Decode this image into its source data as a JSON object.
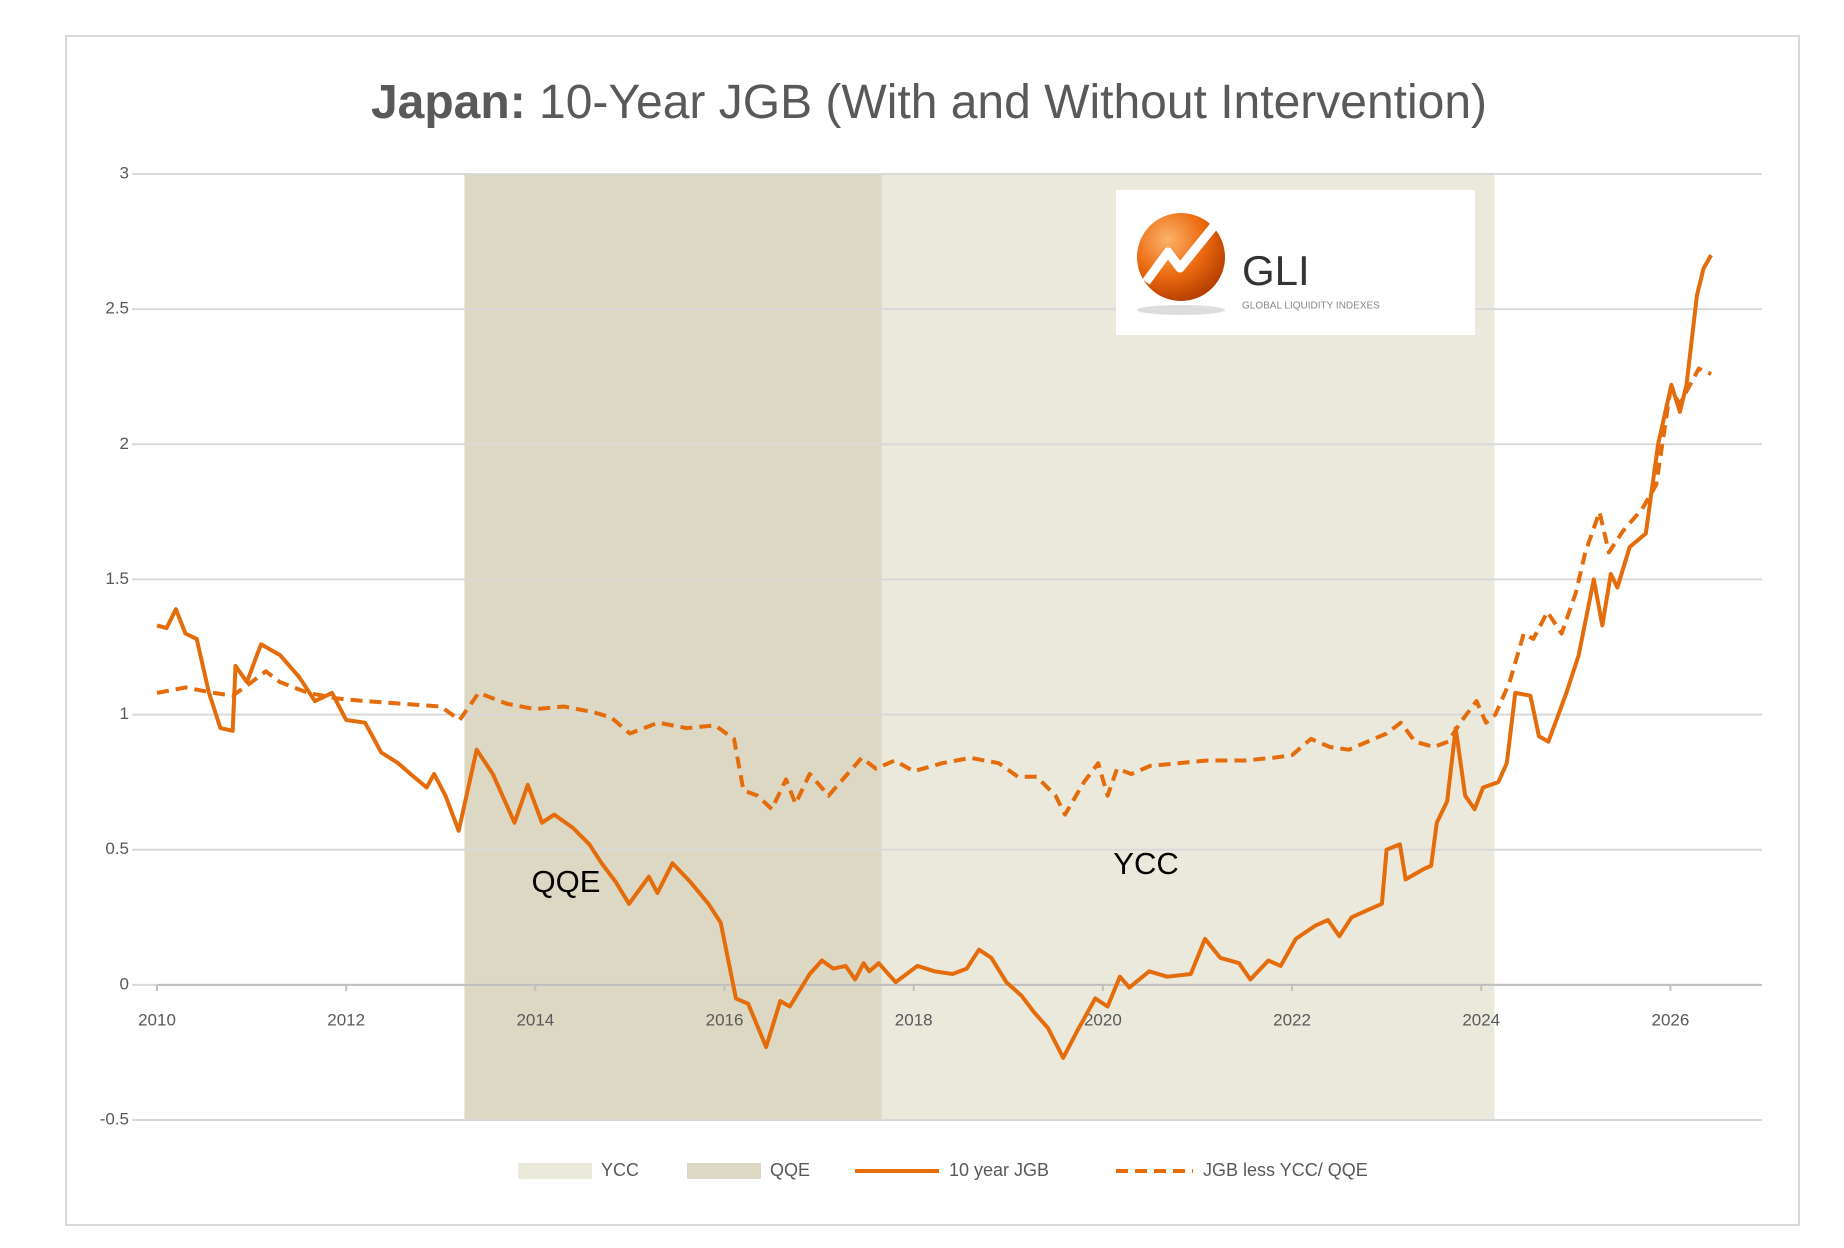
{
  "chart_data": {
    "type": "line",
    "title_bold": "Japan:",
    "title": "10-Year JGB (With and Without Intervention)",
    "xlim": [
      2010,
      2027
    ],
    "xticks": [
      2010,
      2012,
      2014,
      2016,
      2018,
      2020,
      2022,
      2024,
      2026
    ],
    "ylim": [
      -0.5,
      3
    ],
    "yticks": [
      -0.5,
      0,
      0.5,
      1,
      1.5,
      2,
      2.5,
      3
    ],
    "grid": true,
    "legend": "bottom",
    "bands": [
      {
        "name": "YCC",
        "color": "#ebe8dc",
        "x": [
          2017.66,
          2024.14
        ]
      },
      {
        "name": "QQE",
        "color": "#ddd8c4",
        "x": [
          2013.25,
          2017.66
        ]
      }
    ],
    "series": [
      {
        "name": "10 year JGB",
        "color": "#e46c0a",
        "dash": false,
        "x": [
          2010.0,
          2010.1,
          2010.2,
          2010.3,
          2010.42,
          2010.55,
          2010.67,
          2010.8,
          2010.83,
          2010.95,
          2011.1,
          2011.3,
          2011.5,
          2011.67,
          2011.85,
          2012.0,
          2012.2,
          2012.37,
          2012.55,
          2012.68,
          2012.85,
          2012.93,
          2013.05,
          2013.19,
          2013.38,
          2013.55,
          2013.78,
          2013.92,
          2014.07,
          2014.2,
          2014.4,
          2014.57,
          2014.7,
          2014.85,
          2014.99,
          2015.2,
          2015.29,
          2015.45,
          2015.64,
          2015.83,
          2015.96,
          2016.12,
          2016.25,
          2016.44,
          2016.59,
          2016.69,
          2016.9,
          2017.03,
          2017.15,
          2017.28,
          2017.38,
          2017.47,
          2017.53,
          2017.63,
          2017.81,
          2018.04,
          2018.22,
          2018.41,
          2018.56,
          2018.69,
          2018.82,
          2018.98,
          2019.14,
          2019.27,
          2019.42,
          2019.58,
          2019.73,
          2019.92,
          2020.05,
          2020.18,
          2020.28,
          2020.49,
          2020.68,
          2020.93,
          2021.08,
          2021.24,
          2021.44,
          2021.56,
          2021.75,
          2021.88,
          2022.04,
          2022.25,
          2022.38,
          2022.5,
          2022.63,
          2022.82,
          2022.95,
          2023.0,
          2023.14,
          2023.2,
          2023.4,
          2023.47,
          2023.53,
          2023.64,
          2023.73,
          2023.83,
          2023.93,
          2024.02,
          2024.18,
          2024.27,
          2024.36,
          2024.52,
          2024.61,
          2024.71,
          2024.9,
          2025.03,
          2025.19,
          2025.28,
          2025.37,
          2025.44,
          2025.57,
          2025.74,
          2025.87,
          2026.01,
          2026.1,
          2026.17,
          2026.28,
          2026.35,
          2026.43
        ],
        "values": [
          1.33,
          1.32,
          1.39,
          1.3,
          1.28,
          1.08,
          0.95,
          0.94,
          1.18,
          1.12,
          1.26,
          1.22,
          1.14,
          1.05,
          1.08,
          0.98,
          0.97,
          0.86,
          0.82,
          0.78,
          0.73,
          0.78,
          0.7,
          0.57,
          0.87,
          0.78,
          0.6,
          0.74,
          0.6,
          0.63,
          0.58,
          0.52,
          0.45,
          0.38,
          0.3,
          0.4,
          0.34,
          0.45,
          0.38,
          0.3,
          0.23,
          -0.05,
          -0.07,
          -0.23,
          -0.06,
          -0.08,
          0.04,
          0.09,
          0.06,
          0.07,
          0.02,
          0.08,
          0.05,
          0.08,
          0.01,
          0.07,
          0.05,
          0.04,
          0.06,
          0.13,
          0.1,
          0.01,
          -0.04,
          -0.1,
          -0.16,
          -0.27,
          -0.17,
          -0.05,
          -0.08,
          0.03,
          -0.01,
          0.05,
          0.03,
          0.04,
          0.17,
          0.1,
          0.08,
          0.02,
          0.09,
          0.07,
          0.17,
          0.22,
          0.24,
          0.18,
          0.25,
          0.28,
          0.3,
          0.5,
          0.52,
          0.39,
          0.43,
          0.44,
          0.6,
          0.68,
          0.95,
          0.7,
          0.65,
          0.73,
          0.75,
          0.82,
          1.08,
          1.07,
          0.92,
          0.9,
          1.08,
          1.22,
          1.5,
          1.33,
          1.52,
          1.47,
          1.62,
          1.67,
          2.0,
          2.22,
          2.12,
          2.22,
          2.55,
          2.65,
          2.7
        ]
      },
      {
        "name": "JGB less YCC/ QQE",
        "color": "#e46c0a",
        "dash": true,
        "x": [
          2010.0,
          2010.3,
          2010.6,
          2010.8,
          2011.0,
          2011.15,
          2011.3,
          2011.6,
          2011.9,
          2012.2,
          2012.6,
          2013.0,
          2013.2,
          2013.4,
          2013.7,
          2014.0,
          2014.3,
          2014.6,
          2014.8,
          2015.0,
          2015.3,
          2015.6,
          2015.9,
          2016.1,
          2016.2,
          2016.35,
          2016.5,
          2016.65,
          2016.75,
          2016.9,
          2017.1,
          2017.3,
          2017.45,
          2017.6,
          2017.8,
          2018.0,
          2018.3,
          2018.6,
          2018.9,
          2019.1,
          2019.3,
          2019.5,
          2019.6,
          2019.8,
          2019.95,
          2020.05,
          2020.15,
          2020.3,
          2020.5,
          2020.8,
          2021.1,
          2021.5,
          2021.8,
          2022.0,
          2022.2,
          2022.4,
          2022.6,
          2022.8,
          2023.0,
          2023.15,
          2023.3,
          2023.5,
          2023.65,
          2023.8,
          2023.95,
          2024.05,
          2024.15,
          2024.3,
          2024.45,
          2024.55,
          2024.7,
          2024.85,
          2025.0,
          2025.1,
          2025.25,
          2025.35,
          2025.5,
          2025.7,
          2025.85,
          2026.0,
          2026.1,
          2026.3,
          2026.43
        ],
        "values": [
          1.08,
          1.1,
          1.08,
          1.07,
          1.12,
          1.16,
          1.12,
          1.08,
          1.06,
          1.05,
          1.04,
          1.03,
          0.98,
          1.08,
          1.04,
          1.02,
          1.03,
          1.01,
          0.99,
          0.93,
          0.97,
          0.95,
          0.96,
          0.91,
          0.72,
          0.7,
          0.65,
          0.76,
          0.67,
          0.78,
          0.7,
          0.78,
          0.84,
          0.8,
          0.83,
          0.79,
          0.82,
          0.84,
          0.82,
          0.77,
          0.77,
          0.7,
          0.63,
          0.75,
          0.82,
          0.7,
          0.8,
          0.78,
          0.81,
          0.82,
          0.83,
          0.83,
          0.84,
          0.85,
          0.91,
          0.88,
          0.87,
          0.9,
          0.93,
          0.97,
          0.9,
          0.88,
          0.9,
          0.98,
          1.05,
          0.97,
          1.0,
          1.12,
          1.3,
          1.28,
          1.38,
          1.3,
          1.45,
          1.6,
          1.75,
          1.6,
          1.68,
          1.76,
          1.85,
          2.2,
          2.15,
          2.28,
          2.26
        ]
      }
    ],
    "annotations": [
      "QQE",
      "YCC"
    ],
    "logo": {
      "name": "GLI",
      "tagline": "GLOBAL LIQUIDITY INDEXES"
    }
  }
}
